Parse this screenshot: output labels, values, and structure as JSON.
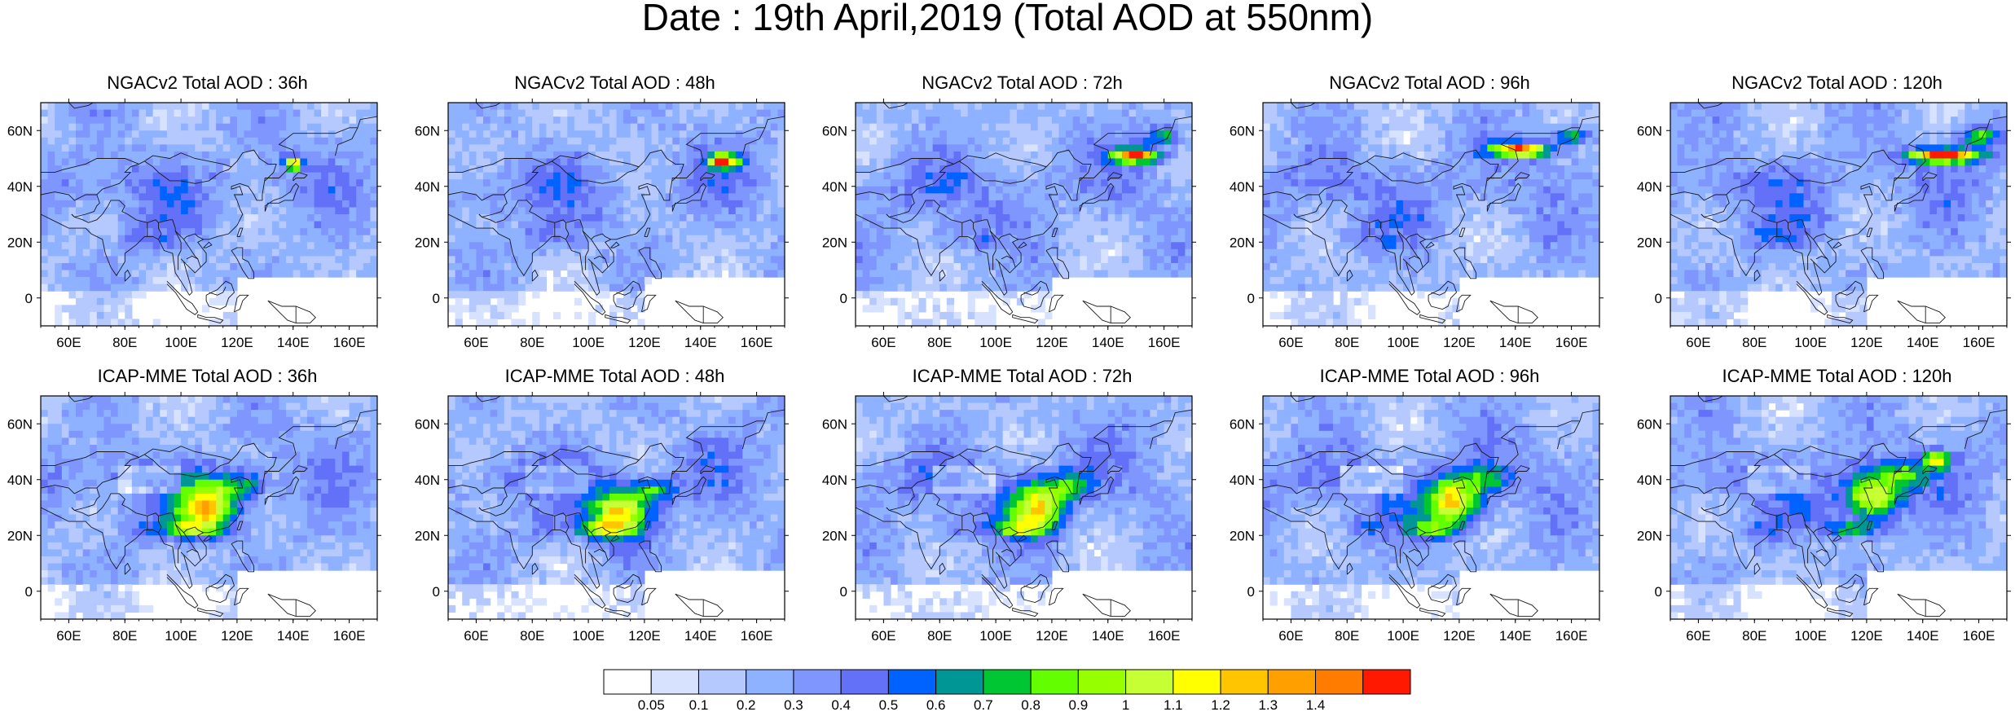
{
  "title": "Date : 19th April,2019 (Total AOD at 550nm)",
  "map": {
    "lat_ticks": [
      "60N",
      "40N",
      "20N",
      "0"
    ],
    "lon_ticks": [
      "60E",
      "80E",
      "100E",
      "120E",
      "140E",
      "160E"
    ],
    "extent": {
      "lon_min": 50,
      "lon_max": 170,
      "lat_min": -10,
      "lat_max": 70
    }
  },
  "panels": [
    {
      "title": "NGACv2 Total AOD : 36h"
    },
    {
      "title": "NGACv2 Total AOD : 48h"
    },
    {
      "title": "NGACv2 Total AOD : 72h"
    },
    {
      "title": "NGACv2 Total AOD : 96h"
    },
    {
      "title": "NGACv2 Total AOD : 120h"
    },
    {
      "title": "ICAP-MME Total AOD : 36h"
    },
    {
      "title": "ICAP-MME Total AOD : 48h"
    },
    {
      "title": "ICAP-MME Total AOD : 72h"
    },
    {
      "title": "ICAP-MME Total AOD : 96h"
    },
    {
      "title": "ICAP-MME Total AOD : 120h"
    }
  ],
  "colorbar": {
    "labels": [
      "0.05",
      "0.1",
      "0.2",
      "0.3",
      "0.4",
      "0.5",
      "0.6",
      "0.7",
      "0.8",
      "0.9",
      "1",
      "1.1",
      "1.2",
      "1.3",
      "1.4"
    ],
    "colors": [
      "#ffffff",
      "#d6e2ff",
      "#b5c9ff",
      "#8eb2ff",
      "#7f96ff",
      "#6370f8",
      "#0063ff",
      "#009696",
      "#00c633",
      "#63ff00",
      "#96ff00",
      "#c6ff33",
      "#ffff00",
      "#ffc600",
      "#ffa000",
      "#ff7c00",
      "#ff1900"
    ]
  }
}
